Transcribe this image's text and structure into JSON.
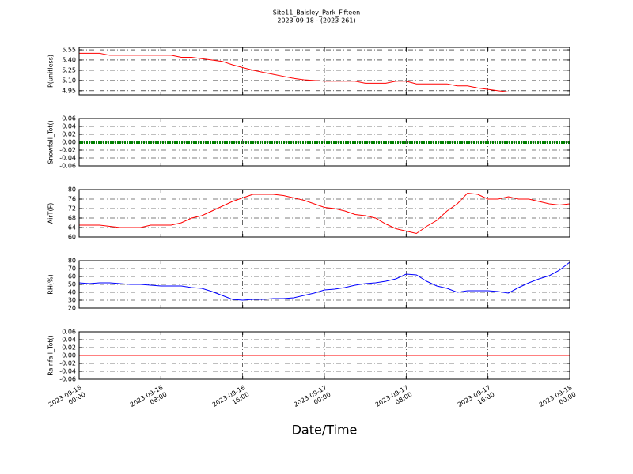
{
  "chart_data": {
    "type": "line",
    "title": "Site11_Baisley_Park_Fifteen",
    "subtitle": "2023-09-18 - (2023-261)",
    "xlabel": "Date/Time",
    "grid": true,
    "x": [
      "2023-09-16 00:00",
      "2023-09-16 01:00",
      "2023-09-16 02:00",
      "2023-09-16 03:00",
      "2023-09-16 04:00",
      "2023-09-16 05:00",
      "2023-09-16 06:00",
      "2023-09-16 07:00",
      "2023-09-16 08:00",
      "2023-09-16 09:00",
      "2023-09-16 10:00",
      "2023-09-16 11:00",
      "2023-09-16 12:00",
      "2023-09-16 13:00",
      "2023-09-16 14:00",
      "2023-09-16 15:00",
      "2023-09-16 16:00",
      "2023-09-16 17:00",
      "2023-09-16 18:00",
      "2023-09-16 19:00",
      "2023-09-16 20:00",
      "2023-09-16 21:00",
      "2023-09-16 22:00",
      "2023-09-16 23:00",
      "2023-09-17 00:00",
      "2023-09-17 01:00",
      "2023-09-17 02:00",
      "2023-09-17 03:00",
      "2023-09-17 04:00",
      "2023-09-17 05:00",
      "2023-09-17 06:00",
      "2023-09-17 07:00",
      "2023-09-17 08:00",
      "2023-09-17 09:00",
      "2023-09-17 10:00",
      "2023-09-17 11:00",
      "2023-09-17 12:00",
      "2023-09-17 13:00",
      "2023-09-17 14:00",
      "2023-09-17 15:00",
      "2023-09-17 16:00",
      "2023-09-17 17:00",
      "2023-09-17 18:00",
      "2023-09-17 19:00",
      "2023-09-17 20:00",
      "2023-09-17 21:00",
      "2023-09-17 22:00",
      "2023-09-17 23:00",
      "2023-09-18 00:00"
    ],
    "xlim": [
      "2023-09-16 00:00",
      "2023-09-18 00:00"
    ],
    "xticks": [
      "2023-09-16 00:00",
      "2023-09-16 08:00",
      "2023-09-16 16:00",
      "2023-09-17 00:00",
      "2023-09-17 08:00",
      "2023-09-17 16:00",
      "2023-09-18 00:00"
    ],
    "panels": [
      {
        "ylabel": "P(unitless)",
        "ylim": [
          4.89,
          5.585
        ],
        "yticks": [
          4.95,
          {
            "value": 5.1,
            "label": "5.10"
          },
          5.25,
          {
            "value": 5.4,
            "label": "5.40"
          },
          5.55
        ],
        "series": [
          {
            "color": "#ff0000",
            "values": [
              5.5,
              5.5,
              5.5,
              5.47,
              5.47,
              5.47,
              5.47,
              5.47,
              5.47,
              5.47,
              5.44,
              5.44,
              5.42,
              5.4,
              5.38,
              5.33,
              5.29,
              5.25,
              5.22,
              5.19,
              5.16,
              5.13,
              5.11,
              5.1,
              5.09,
              5.09,
              5.09,
              5.09,
              5.06,
              5.06,
              5.06,
              5.09,
              5.09,
              5.05,
              5.05,
              5.05,
              5.05,
              5.02,
              5.02,
              4.99,
              4.97,
              4.95,
              4.93,
              4.93,
              4.93,
              4.93,
              4.93,
              4.93,
              4.93
            ]
          }
        ]
      },
      {
        "ylabel": "Snowfall_Tot()",
        "ylim": [
          -0.06,
          0.06
        ],
        "yticks": [
          -0.06,
          -0.04,
          -0.02,
          {
            "value": 0,
            "label": "0.00"
          },
          0.02,
          0.04,
          0.06
        ],
        "series": [
          {
            "color": "#008000",
            "values": [
              0,
              0,
              0,
              0,
              0,
              0,
              0,
              0,
              0,
              0,
              0,
              0,
              0,
              0,
              0,
              0,
              0,
              0,
              0,
              0,
              0,
              0,
              0,
              0,
              0,
              0,
              0,
              0,
              0,
              0,
              0,
              0,
              0,
              0,
              0,
              0,
              0,
              0,
              0,
              0,
              0,
              0,
              0,
              0,
              0,
              0,
              0,
              0,
              0
            ]
          }
        ]
      },
      {
        "ylabel": "AirT(F)",
        "ylim": [
          60,
          80
        ],
        "yticks": [
          60,
          64,
          68,
          72,
          76,
          80
        ],
        "series": [
          {
            "color": "#ff0000",
            "values": [
              65,
              65,
              65,
              64.5,
              64,
              64,
              64,
              65,
              65,
              65,
              66,
              68,
              69,
              71,
              73,
              75,
              76.5,
              78,
              78,
              78,
              77.5,
              76.5,
              75.5,
              74,
              72.5,
              72,
              71,
              69.5,
              69,
              68,
              65.5,
              63.5,
              62.5,
              61.5,
              64.5,
              67,
              71,
              74,
              78.5,
              78,
              76,
              76,
              77,
              76,
              76,
              75,
              74,
              73.5,
              74
            ]
          }
        ]
      },
      {
        "ylabel": "RH(%)",
        "ylim": [
          20,
          80
        ],
        "yticks": [
          20,
          30,
          40,
          50,
          60,
          70,
          80
        ],
        "series": [
          {
            "color": "#0000ff",
            "values": [
              52,
              51,
              52,
              52,
              51,
              50,
              50,
              49,
              48,
              48,
              48,
              46,
              45,
              41,
              36,
              31,
              30,
              31,
              31,
              32,
              32,
              33,
              36,
              39,
              43,
              44,
              46,
              49,
              51,
              52,
              54,
              57,
              63,
              62,
              54,
              48,
              45,
              40,
              42,
              42,
              42,
              41,
              39,
              46,
              52,
              57,
              61,
              68,
              78
            ]
          }
        ]
      },
      {
        "ylabel": "Rainfall_Tot()",
        "ylim": [
          -0.06,
          0.06
        ],
        "yticks": [
          -0.06,
          -0.04,
          -0.02,
          {
            "value": 0,
            "label": "0.00"
          },
          0.02,
          0.04,
          0.06
        ],
        "series": [
          {
            "color": "#ff0000",
            "values": [
              0,
              0,
              0,
              0,
              0,
              0,
              0,
              0,
              0,
              0,
              0,
              0,
              0,
              0,
              0,
              0,
              0,
              0,
              0,
              0,
              0,
              0,
              0,
              0,
              0,
              0,
              0,
              0,
              0,
              0,
              0,
              0,
              0,
              0,
              0,
              0,
              0,
              0,
              0,
              0,
              0,
              0,
              0,
              0,
              0,
              0,
              0,
              0,
              0
            ]
          }
        ]
      }
    ]
  }
}
